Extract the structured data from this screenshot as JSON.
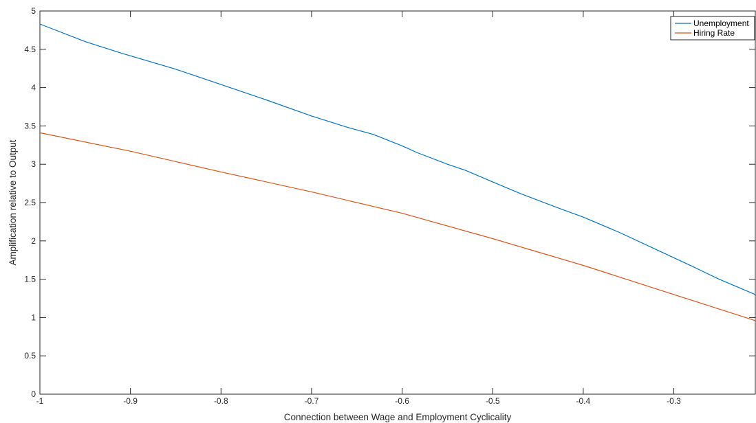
{
  "chart_data": {
    "type": "line",
    "xlabel": "Connection between Wage and Employment Cyclicality",
    "ylabel": "Amplification relative to Output",
    "xlim": [
      -1,
      -0.21
    ],
    "ylim": [
      0,
      5
    ],
    "xticks": [
      -1,
      -0.9,
      -0.8,
      -0.7,
      -0.6,
      -0.5,
      -0.4,
      -0.3
    ],
    "xtick_labels": [
      "-1",
      "-0.9",
      "-0.8",
      "-0.7",
      "-0.6",
      "-0.5",
      "-0.4",
      "-0.3"
    ],
    "yticks": [
      0,
      0.5,
      1,
      1.5,
      2,
      2.5,
      3,
      3.5,
      4,
      4.5,
      5
    ],
    "ytick_labels": [
      "0",
      "0.5",
      "1",
      "1.5",
      "2",
      "2.5",
      "3",
      "3.5",
      "4",
      "4.5",
      "5"
    ],
    "grid": false,
    "legend_position": "top-right",
    "series": [
      {
        "name": "Unemployment",
        "color": "#0072BD",
        "x": [
          -1,
          -0.95,
          -0.91,
          -0.85,
          -0.8,
          -0.75,
          -0.7,
          -0.66,
          -0.632,
          -0.6,
          -0.583,
          -0.55,
          -0.53,
          -0.5,
          -0.47,
          -0.43,
          -0.4,
          -0.36,
          -0.32,
          -0.28,
          -0.25,
          -0.21
        ],
        "y": [
          4.83,
          4.6,
          4.45,
          4.24,
          4.04,
          3.84,
          3.63,
          3.48,
          3.39,
          3.24,
          3.15,
          3.0,
          2.92,
          2.77,
          2.62,
          2.44,
          2.31,
          2.11,
          1.89,
          1.67,
          1.5,
          1.3
        ]
      },
      {
        "name": "Hiring Rate",
        "color": "#D95319",
        "x": [
          -1,
          -0.9,
          -0.8,
          -0.7,
          -0.6,
          -0.5,
          -0.4,
          -0.3,
          -0.21
        ],
        "y": [
          3.41,
          3.17,
          2.9,
          2.64,
          2.36,
          2.03,
          1.68,
          1.3,
          0.96
        ]
      }
    ]
  }
}
